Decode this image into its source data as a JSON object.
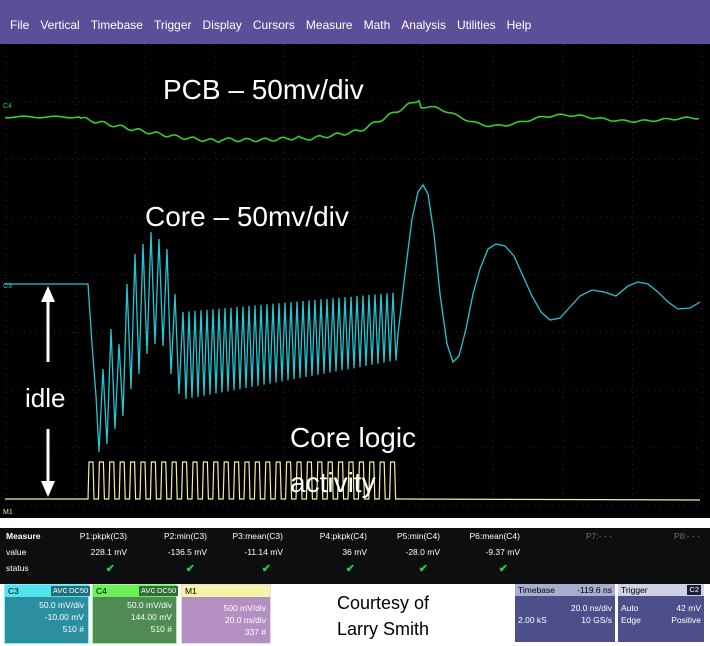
{
  "menu": [
    "File",
    "Vertical",
    "Timebase",
    "Trigger",
    "Display",
    "Cursors",
    "Measure",
    "Math",
    "Analysis",
    "Utilities",
    "Help"
  ],
  "annotations": {
    "pcb": "PCB – 50mv/div",
    "core": "Core – 50mv/div",
    "idle": "idle",
    "core_logic_1": "Core logic",
    "core_logic_2": "activity"
  },
  "channel_markers": {
    "c4": "C4",
    "c3": "C3",
    "m1": "M1"
  },
  "trace_colors": {
    "c3": "#22c6d4",
    "c4": "#34d02a",
    "m1": "#f2ef9a"
  },
  "measure": {
    "title": "Measure",
    "row_labels": {
      "value": "value",
      "status": "status"
    },
    "params": [
      {
        "name": "P1:pkpk(C3)",
        "value": "228.1 mV",
        "status": "✔"
      },
      {
        "name": "P2:min(C3)",
        "value": "-136.5 mV",
        "status": "✔"
      },
      {
        "name": "P3:mean(C3)",
        "value": "-11.14 mV",
        "status": "✔"
      },
      {
        "name": "P4:pkpk(C4)",
        "value": "36 mV",
        "status": "✔"
      },
      {
        "name": "P5:min(C4)",
        "value": "-28.0 mV",
        "status": "✔"
      },
      {
        "name": "P6:mean(C4)",
        "value": "-9.37 mV",
        "status": "✔"
      },
      {
        "name": "P7:- - -",
        "value": "",
        "status": ""
      },
      {
        "name": "P8:- - -",
        "value": "",
        "status": ""
      }
    ]
  },
  "channels": {
    "c3": {
      "name": "C3",
      "avg": "AVG",
      "coupling": "DC50",
      "scale": "50.0 mV/div",
      "offset": "-10.00 mV",
      "count": "510 #"
    },
    "c4": {
      "name": "C4",
      "avg": "AVG",
      "coupling": "DC50",
      "scale": "50.0 mV/div",
      "offset": "144.00 mV",
      "count": "510 #"
    },
    "m1": {
      "name": "M1",
      "scale": "500 mV/div",
      "time": "20.0 ns/div",
      "count": "337 #"
    }
  },
  "courtesy": {
    "line1": "Courtesy of",
    "line2": "Larry Smith"
  },
  "timebase": {
    "label": "Timebase",
    "delay": "-119.6 ns",
    "per_div": "20.0 ns/div",
    "samples": "2.00 kS",
    "rate": "10 GS/s"
  },
  "trigger": {
    "label": "Trigger",
    "channel": "C2",
    "mode": "Auto",
    "level": "42 mV",
    "type": "Edge",
    "slope": "Positive"
  }
}
